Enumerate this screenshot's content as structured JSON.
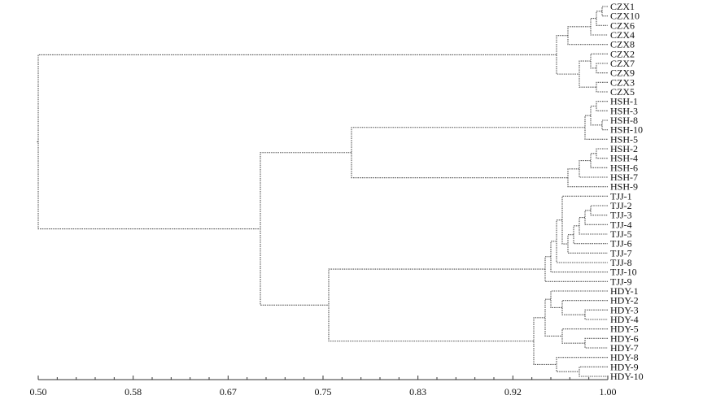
{
  "chart_data": {
    "type": "dendrogram",
    "title": "",
    "xlabel": "",
    "ylabel": "",
    "x_axis": {
      "range": [
        0.5,
        1.0
      ],
      "tick_labels": [
        "0.50",
        "0.58",
        "0.67",
        "0.75",
        "0.83",
        "0.92",
        "1.00"
      ],
      "tick_values": [
        0.5,
        0.58,
        0.67,
        0.75,
        0.83,
        0.92,
        1.0
      ],
      "minor_ticks_between_labels": 5
    },
    "leaves": [
      "CZX1",
      "CZX10",
      "CZX6",
      "CZX4",
      "CZX8",
      "CZX2",
      "CZX7",
      "CZX9",
      "CZX3",
      "CZX5",
      "HSH-1",
      "HSH-3",
      "HSH-8",
      "HSH-10",
      "HSH-5",
      "HSH-2",
      "HSH-4",
      "HSH-6",
      "HSH-7",
      "HSH-9",
      "TJJ-1",
      "TJJ-2",
      "TJJ-3",
      "TJJ-4",
      "TJJ-5",
      "TJJ-6",
      "TJJ-7",
      "TJJ-8",
      "TJJ-10",
      "TJJ-9",
      "HDY-1",
      "HDY-2",
      "HDY-3",
      "HDY-4",
      "HDY-5",
      "HDY-6",
      "HDY-7",
      "HDY-8",
      "HDY-9",
      "HDY-10"
    ],
    "merges": [
      {
        "id": "c1",
        "a": "CZX1",
        "b": "CZX10",
        "sim": 0.995
      },
      {
        "id": "c2",
        "a": "c1",
        "b": "CZX6",
        "sim": 0.99
      },
      {
        "id": "c3",
        "a": "c2",
        "b": "CZX4",
        "sim": 0.985
      },
      {
        "id": "c4",
        "a": "c3",
        "b": "CZX8",
        "sim": 0.965
      },
      {
        "id": "c5",
        "a": "CZX7",
        "b": "CZX9",
        "sim": 0.99
      },
      {
        "id": "c6",
        "a": "CZX2",
        "b": "c5",
        "sim": 0.985
      },
      {
        "id": "c7",
        "a": "CZX3",
        "b": "CZX5",
        "sim": 0.99
      },
      {
        "id": "c8",
        "a": "c6",
        "b": "c7",
        "sim": 0.975
      },
      {
        "id": "c9",
        "a": "c4",
        "b": "c8",
        "sim": 0.955
      },
      {
        "id": "h1",
        "a": "HSH-1",
        "b": "HSH-3",
        "sim": 0.99
      },
      {
        "id": "h2",
        "a": "HSH-8",
        "b": "HSH-10",
        "sim": 0.995
      },
      {
        "id": "h3",
        "a": "h1",
        "b": "h2",
        "sim": 0.985
      },
      {
        "id": "h4",
        "a": "h3",
        "b": "HSH-5",
        "sim": 0.98
      },
      {
        "id": "h5",
        "a": "HSH-2",
        "b": "HSH-4",
        "sim": 0.99
      },
      {
        "id": "h6",
        "a": "h5",
        "b": "HSH-6",
        "sim": 0.985
      },
      {
        "id": "h7",
        "a": "h6",
        "b": "HSH-7",
        "sim": 0.975
      },
      {
        "id": "h8",
        "a": "h7",
        "b": "HSH-9",
        "sim": 0.965
      },
      {
        "id": "h9",
        "a": "h4",
        "b": "h8",
        "sim": 0.775
      },
      {
        "id": "t1",
        "a": "TJJ-2",
        "b": "TJJ-3",
        "sim": 0.985
      },
      {
        "id": "t2",
        "a": "t1",
        "b": "TJJ-4",
        "sim": 0.98
      },
      {
        "id": "t3",
        "a": "t2",
        "b": "TJJ-5",
        "sim": 0.975
      },
      {
        "id": "t4",
        "a": "t3",
        "b": "TJJ-6",
        "sim": 0.97
      },
      {
        "id": "t5",
        "a": "t4",
        "b": "TJJ-7",
        "sim": 0.965
      },
      {
        "id": "t6",
        "a": "TJJ-1",
        "b": "t5",
        "sim": 0.96
      },
      {
        "id": "t7",
        "a": "t6",
        "b": "TJJ-8",
        "sim": 0.955
      },
      {
        "id": "t8",
        "a": "t7",
        "b": "TJJ-10",
        "sim": 0.95
      },
      {
        "id": "t9",
        "a": "t8",
        "b": "TJJ-9",
        "sim": 0.945
      },
      {
        "id": "d1",
        "a": "HDY-3",
        "b": "HDY-4",
        "sim": 0.98
      },
      {
        "id": "d2",
        "a": "HDY-2",
        "b": "d1",
        "sim": 0.96
      },
      {
        "id": "d3",
        "a": "HDY-1",
        "b": "d2",
        "sim": 0.95
      },
      {
        "id": "d4",
        "a": "HDY-6",
        "b": "HDY-7",
        "sim": 0.98
      },
      {
        "id": "d5",
        "a": "HDY-5",
        "b": "d4",
        "sim": 0.96
      },
      {
        "id": "d6",
        "a": "d3",
        "b": "d5",
        "sim": 0.945
      },
      {
        "id": "d7",
        "a": "HDY-9",
        "b": "HDY-10",
        "sim": 0.975
      },
      {
        "id": "d8",
        "a": "HDY-8",
        "b": "d7",
        "sim": 0.955
      },
      {
        "id": "d9",
        "a": "d6",
        "b": "d8",
        "sim": 0.935
      },
      {
        "id": "td",
        "a": "t9",
        "b": "d9",
        "sim": 0.755
      },
      {
        "id": "hs",
        "a": "h9",
        "b": "td",
        "sim": 0.695
      },
      {
        "id": "root",
        "a": "c9",
        "b": "hs",
        "sim": 0.5
      }
    ]
  }
}
